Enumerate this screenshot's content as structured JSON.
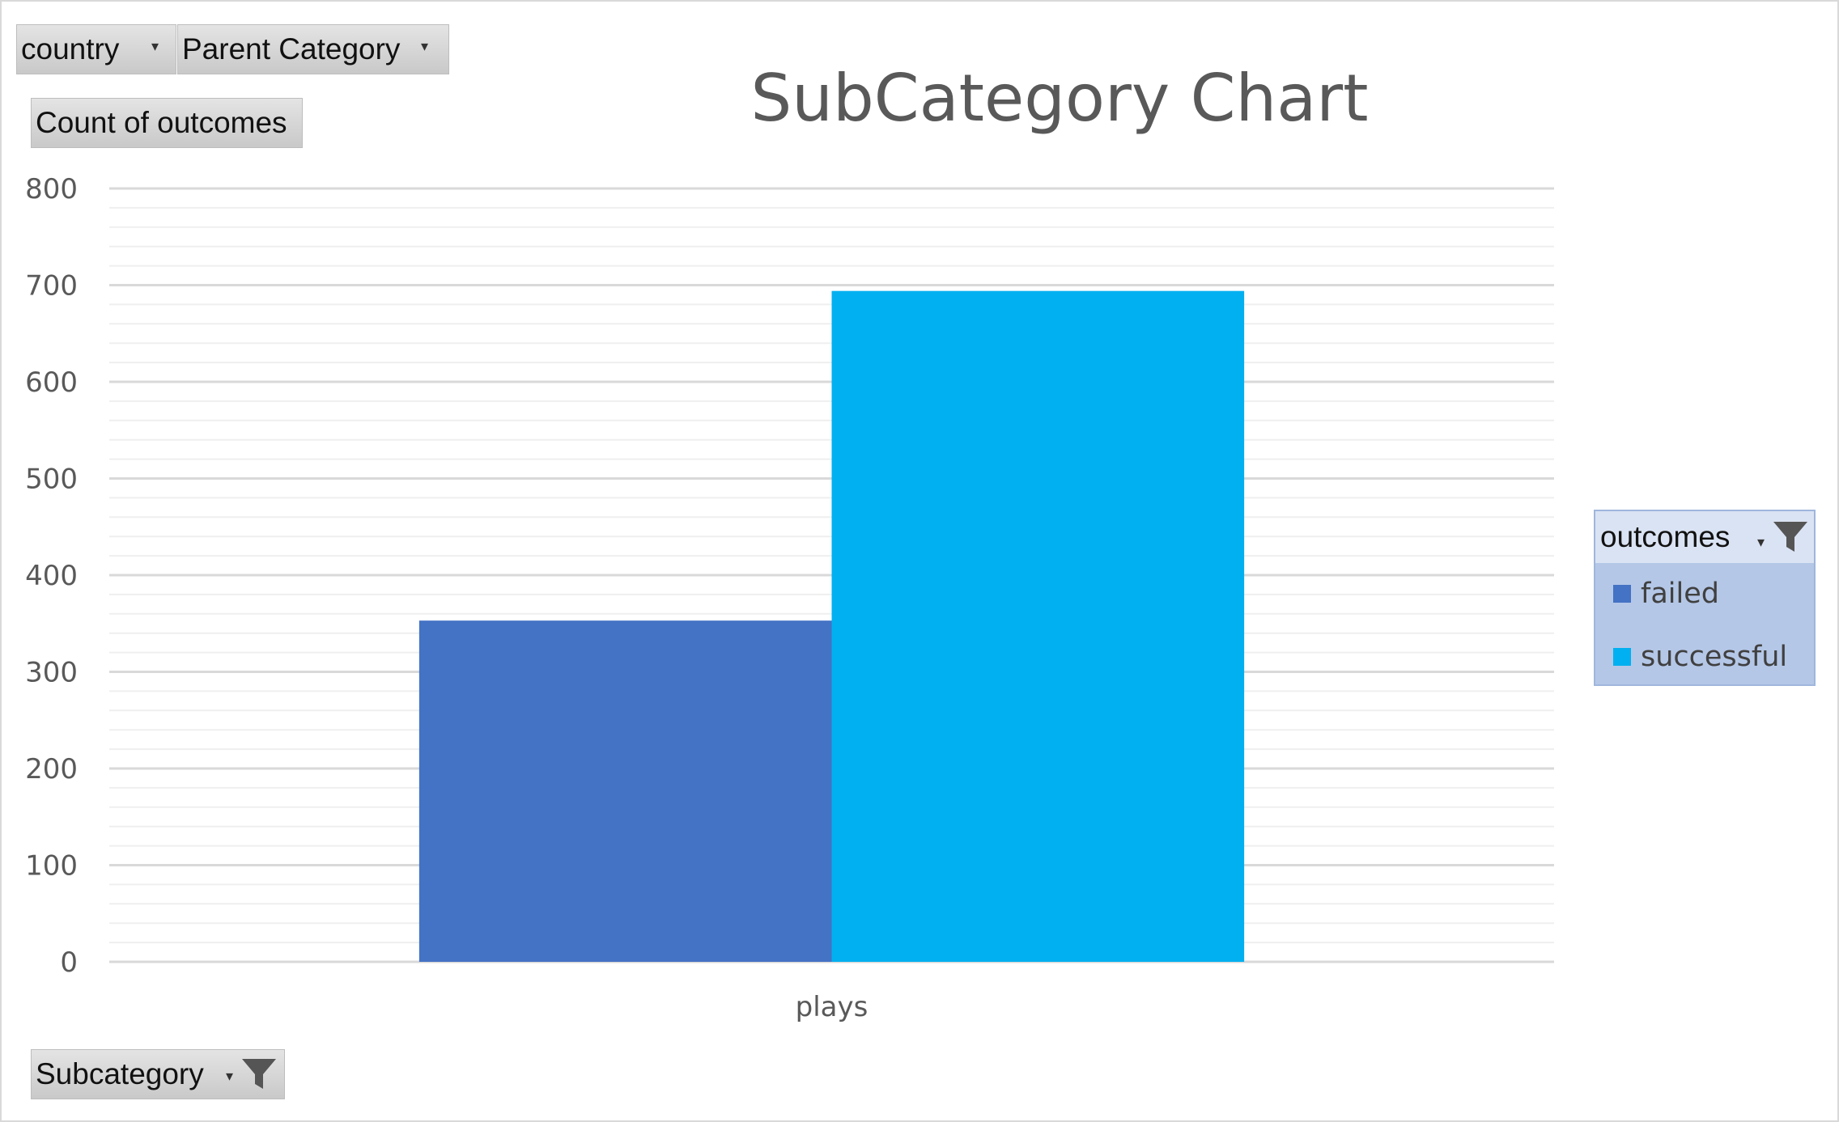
{
  "filters": {
    "country_label": "country",
    "parent_category_label": "Parent Category",
    "value_label": "Count of outcomes",
    "subcategory_label": "Subcategory",
    "outcomes_label": "outcomes"
  },
  "colors": {
    "failed": "#4472c4",
    "successful": "#00b0f0",
    "gridline": "#d9d9d9",
    "minor_gridline": "#efefef"
  },
  "chart_data": {
    "type": "bar",
    "title": "SubCategory Chart",
    "categories": [
      "plays"
    ],
    "series": [
      {
        "name": "failed",
        "values": [
          353
        ]
      },
      {
        "name": "successful",
        "values": [
          694
        ]
      }
    ],
    "ylim": [
      0,
      800
    ],
    "yticks": [
      0,
      100,
      200,
      300,
      400,
      500,
      600,
      700,
      800
    ],
    "grid": true,
    "legend": "right"
  }
}
